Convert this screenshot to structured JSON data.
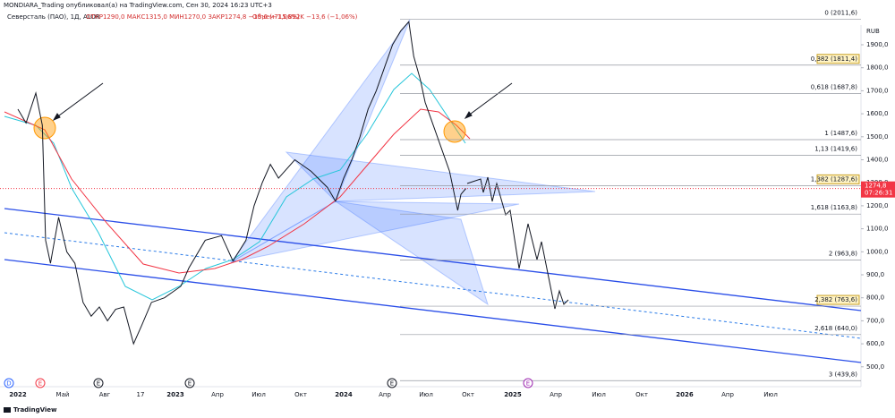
{
  "header": {
    "publisher": "MONDIARA_Trading опубликовал(а) на TradingView.com, Сен 30, 2024 16:23 UTC+3",
    "symbol": "Северсталь (ПАО), 1Д, ALOR",
    "ohlc": "ОТКР1290,0  МАКС1315,0  МИН1270,0  ЗАКР1274,8  −13,6 (−1,06%)",
    "volume": "Объем715,892K  −13,6 (−1,06%)"
  },
  "price_axis": {
    "currency": "RUB",
    "ticks": [
      {
        "value": 1900,
        "label": "1900,0"
      },
      {
        "value": 1800,
        "label": "1800,0"
      },
      {
        "value": 1700,
        "label": "1700,0"
      },
      {
        "value": 1600,
        "label": "1600,0"
      },
      {
        "value": 1500,
        "label": "1500,0"
      },
      {
        "value": 1400,
        "label": "1400,0"
      },
      {
        "value": 1300,
        "label": "1300,0"
      },
      {
        "value": 1200,
        "label": "1200,0"
      },
      {
        "value": 1100,
        "label": "1100,0"
      },
      {
        "value": 1000,
        "label": "1000,0"
      },
      {
        "value": 900,
        "label": "900,0"
      },
      {
        "value": 800,
        "label": "800,0"
      },
      {
        "value": 700,
        "label": "700,0"
      },
      {
        "value": 600,
        "label": "600,0"
      },
      {
        "value": 500,
        "label": "500,0"
      }
    ],
    "current": {
      "value": 1274.8,
      "label": "1274,8",
      "timer": "07:26:31"
    }
  },
  "time_axis": [
    "2022",
    "Май",
    "Авг",
    "17",
    "2023",
    "Апр",
    "Июл",
    "Окт",
    "2024",
    "Апр",
    "Июл",
    "Окт",
    "2025",
    "Апр",
    "Июл",
    "Окт",
    "2026",
    "Апр",
    "Июл"
  ],
  "fib_levels": [
    {
      "value": 2011.6,
      "label": "0 (2011,6)",
      "boxed": false
    },
    {
      "value": 1811.4,
      "label": "0,382 (1811,4)",
      "boxed": true
    },
    {
      "value": 1687.8,
      "label": "0,618 (1687,8)",
      "boxed": false
    },
    {
      "value": 1487.6,
      "label": "1 (1487,6)",
      "boxed": false
    },
    {
      "value": 1419.6,
      "label": "1,13 (1419,6)",
      "boxed": false
    },
    {
      "value": 1287.6,
      "label": "1,382 (1287,6)",
      "boxed": true
    },
    {
      "value": 1163.8,
      "label": "1,618 (1163,8)",
      "boxed": false
    },
    {
      "value": 963.8,
      "label": "2 (963,8)",
      "boxed": false
    },
    {
      "value": 763.6,
      "label": "2,382 (763,6)",
      "boxed": true
    },
    {
      "value": 640.0,
      "label": "2,618 (640,0)",
      "boxed": false
    },
    {
      "value": 439.8,
      "label": "3 (439,8)",
      "boxed": false
    }
  ],
  "events": [
    {
      "label": "D",
      "color": "#2962ff"
    },
    {
      "label": "E",
      "color": "#f23645"
    },
    {
      "label": "E",
      "color": "#131722"
    },
    {
      "label": "E",
      "color": "#131722"
    },
    {
      "label": "E",
      "color": "#131722"
    },
    {
      "label": "E",
      "color": "#9c27b0"
    }
  ],
  "price": {
    "x": [
      2022.0,
      2022.05,
      2022.11,
      2022.15,
      2022.17,
      2022.2,
      2022.25,
      2022.3,
      2022.35,
      2022.4,
      2022.45,
      2022.5,
      2022.55,
      2022.6,
      2022.65,
      2022.71,
      2022.76,
      2022.82,
      2022.9,
      2023.0,
      2023.05,
      2023.15,
      2023.25,
      2023.32,
      2023.4,
      2023.45,
      2023.5,
      2023.55,
      2023.6,
      2023.7,
      2023.8,
      2023.9,
      2023.95,
      2024.0,
      2024.05,
      2024.1,
      2024.15,
      2024.2,
      2024.25,
      2024.3,
      2024.35,
      2024.4,
      2024.43,
      2024.47,
      2024.5,
      2024.55,
      2024.6,
      2024.65,
      2024.7,
      2024.72,
      2024.75
    ],
    "values": [
      1620,
      1560,
      1690,
      1550,
      1050,
      950,
      1150,
      1000,
      950,
      780,
      720,
      760,
      700,
      750,
      760,
      600,
      680,
      780,
      800,
      850,
      930,
      1050,
      1070,
      960,
      1050,
      1200,
      1300,
      1380,
      1320,
      1400,
      1350,
      1280,
      1220,
      1320,
      1400,
      1500,
      1620,
      1700,
      1800,
      1900,
      1960,
      2000,
      1850,
      1750,
      1650,
      1550,
      1450,
      1350,
      1180,
      1250,
      1275
    ],
    "color": "#131722"
  },
  "branding": "TradingView"
}
